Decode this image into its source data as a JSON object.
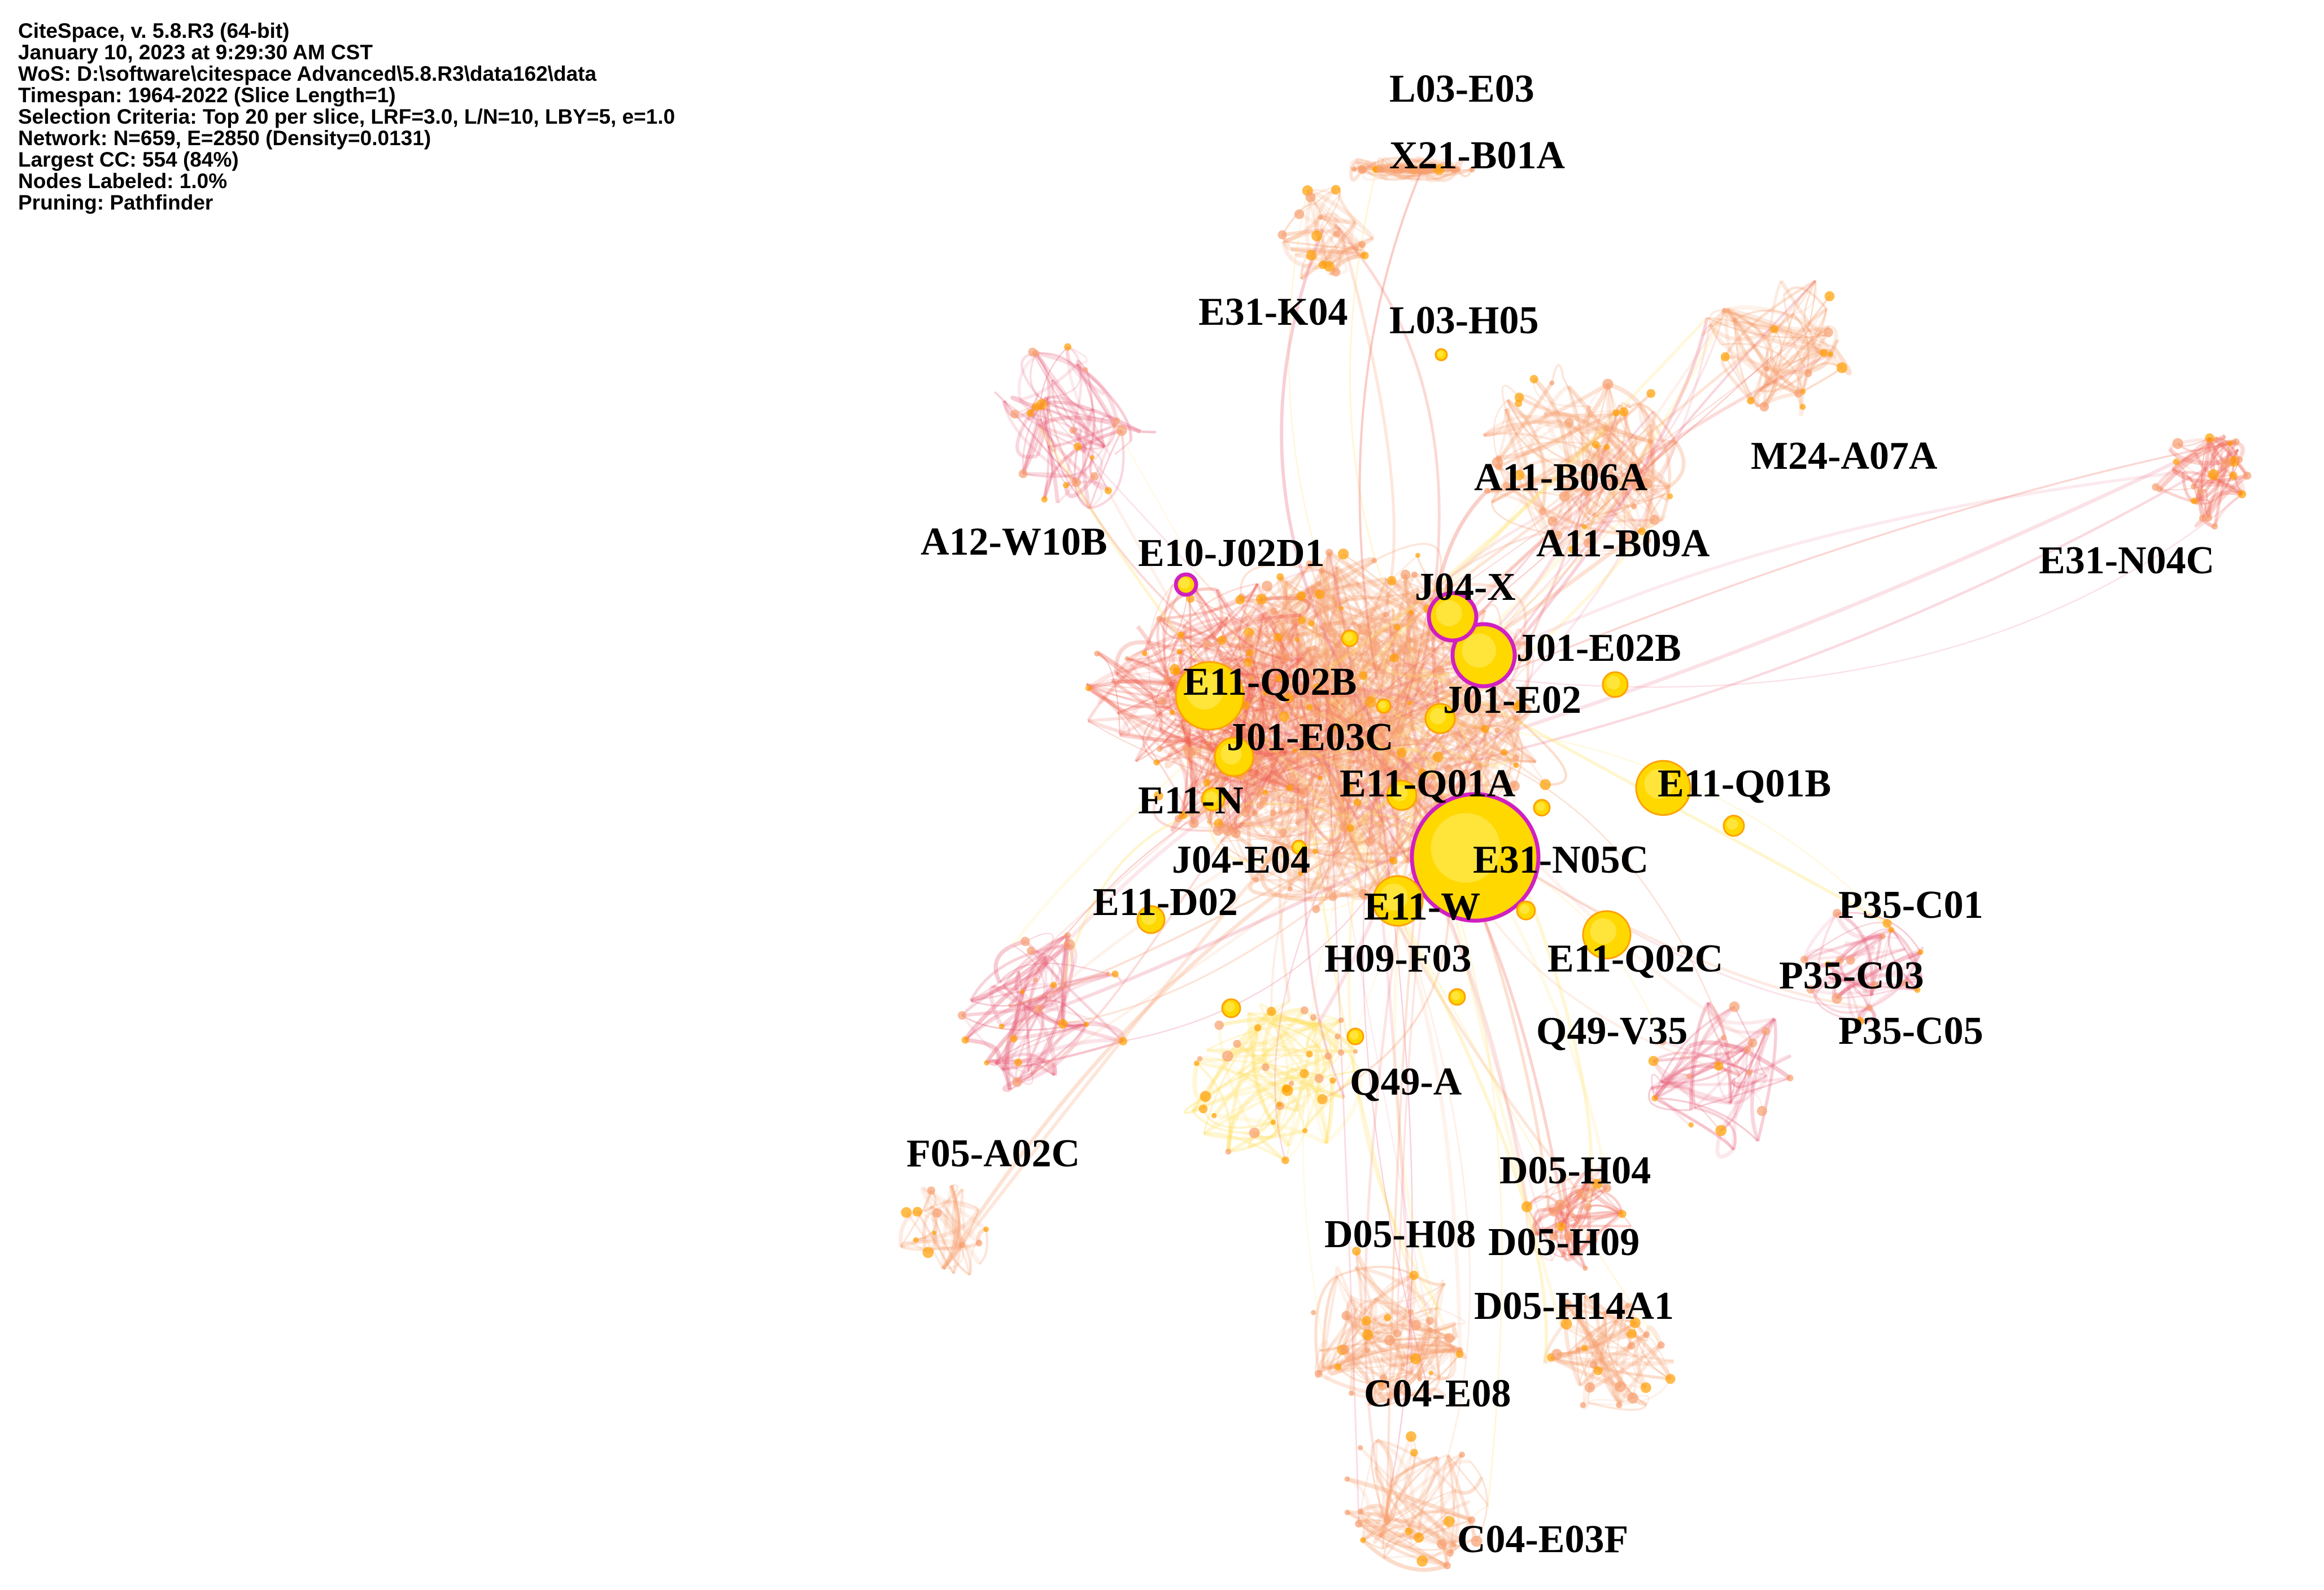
{
  "info_lines": [
    "CiteSpace, v. 5.8.R3 (64-bit)",
    "January 10, 2023 at 9:29:30 AM CST",
    "WoS: D:\\software\\citespace Advanced\\5.8.R3\\data162\\data",
    "Timespan: 1964-2022 (Slice Length=1)",
    "Selection Criteria: Top 20 per slice, LRF=3.0, L/N=10, LBY=5, e=1.0",
    "Network: N=659, E=2850 (Density=0.0131)",
    "Largest CC: 554 (84%)",
    "Nodes Labeled: 1.0%",
    "Pruning: Pathfinder"
  ],
  "colors": {
    "edge_orange": "#f7a070",
    "edge_pink": "#e8607a",
    "edge_red": "#f06050",
    "edge_yellow": "#ffe060",
    "node_yellow": "#ffd800",
    "node_orange": "#ffa000",
    "ring_magenta": "#d020c0"
  },
  "labels": [
    "L03-E03",
    "X21-B01A",
    "E31-K04",
    "L03-H05",
    "M24-A07A",
    "A11-B06A",
    "A11-B09A",
    "E31-N04C",
    "A12-W10B",
    "E10-J02D1",
    "J04-X",
    "J01-E02B",
    "E11-Q02B",
    "J01-E02",
    "J01-E03C",
    "E11-Q01A",
    "E11-Q01B",
    "E11-N",
    "J04-E04",
    "E31-N05C",
    "E11-D02",
    "E11-W",
    "H09-F03",
    "E11-Q02C",
    "P35-C01",
    "P35-C03",
    "P35-C05",
    "Q49-V35",
    "Q49-A",
    "F05-A02C",
    "D05-H04",
    "D05-H08",
    "D05-H09",
    "D05-H14A1",
    "C04-E08",
    "C04-E03F"
  ]
}
